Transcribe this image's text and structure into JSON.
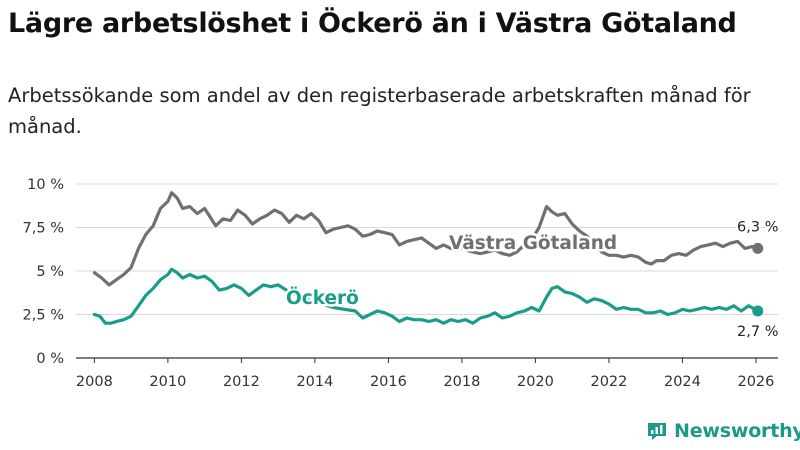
{
  "title": "Lägre arbetslöshet i Öckerö än i Västra Götaland",
  "subtitle": "Arbetssökande som andel av den registerbaserade arbetskraften månad för månad.",
  "brand": "Newsworthy",
  "colors": {
    "vg": "#707070",
    "ockero": "#1a9c8c",
    "grid": "#d9d9d9",
    "axis": "#333333"
  },
  "chart_data": {
    "type": "line",
    "title": "Lägre arbetslöshet i Öckerö än i Västra Götaland",
    "xlabel": "",
    "ylabel": "",
    "xlim": [
      2007.5,
      2026.6
    ],
    "ylim": [
      0,
      10
    ],
    "x_ticks": [
      2008,
      2010,
      2012,
      2014,
      2016,
      2018,
      2020,
      2022,
      2024,
      2026
    ],
    "x_tick_labels": [
      "2008",
      "2010",
      "2012",
      "2014",
      "2016",
      "2018",
      "2020",
      "2022",
      "2024",
      "2026"
    ],
    "y_ticks": [
      0,
      2.5,
      5,
      7.5,
      10
    ],
    "y_tick_labels": [
      "0 %",
      "2,5 %",
      "5 %",
      "7,5 %",
      "10 %"
    ],
    "grid": "horizontal",
    "series": [
      {
        "name": "Västra Götaland",
        "end_label": "6,3 %",
        "points": [
          [
            2008.0,
            4.9
          ],
          [
            2008.2,
            4.6
          ],
          [
            2008.4,
            4.2
          ],
          [
            2008.6,
            4.5
          ],
          [
            2008.8,
            4.8
          ],
          [
            2009.0,
            5.2
          ],
          [
            2009.2,
            6.3
          ],
          [
            2009.4,
            7.1
          ],
          [
            2009.6,
            7.6
          ],
          [
            2009.8,
            8.6
          ],
          [
            2010.0,
            9.0
          ],
          [
            2010.1,
            9.5
          ],
          [
            2010.25,
            9.2
          ],
          [
            2010.4,
            8.6
          ],
          [
            2010.6,
            8.7
          ],
          [
            2010.8,
            8.3
          ],
          [
            2011.0,
            8.6
          ],
          [
            2011.15,
            8.1
          ],
          [
            2011.3,
            7.6
          ],
          [
            2011.5,
            8.0
          ],
          [
            2011.7,
            7.9
          ],
          [
            2011.9,
            8.5
          ],
          [
            2012.1,
            8.2
          ],
          [
            2012.3,
            7.7
          ],
          [
            2012.5,
            8.0
          ],
          [
            2012.7,
            8.2
          ],
          [
            2012.9,
            8.5
          ],
          [
            2013.1,
            8.3
          ],
          [
            2013.3,
            7.8
          ],
          [
            2013.5,
            8.2
          ],
          [
            2013.7,
            8.0
          ],
          [
            2013.9,
            8.3
          ],
          [
            2014.1,
            7.9
          ],
          [
            2014.3,
            7.2
          ],
          [
            2014.5,
            7.4
          ],
          [
            2014.7,
            7.5
          ],
          [
            2014.9,
            7.6
          ],
          [
            2015.1,
            7.4
          ],
          [
            2015.3,
            7.0
          ],
          [
            2015.5,
            7.1
          ],
          [
            2015.7,
            7.3
          ],
          [
            2015.9,
            7.2
          ],
          [
            2016.1,
            7.1
          ],
          [
            2016.3,
            6.5
          ],
          [
            2016.5,
            6.7
          ],
          [
            2016.7,
            6.8
          ],
          [
            2016.9,
            6.9
          ],
          [
            2017.1,
            6.6
          ],
          [
            2017.3,
            6.3
          ],
          [
            2017.5,
            6.5
          ],
          [
            2017.7,
            6.3
          ],
          [
            2017.9,
            6.4
          ],
          [
            2018.1,
            6.2
          ],
          [
            2018.3,
            6.1
          ],
          [
            2018.5,
            6.0
          ],
          [
            2018.7,
            6.1
          ],
          [
            2018.9,
            6.2
          ],
          [
            2019.1,
            6.0
          ],
          [
            2019.3,
            5.9
          ],
          [
            2019.5,
            6.1
          ],
          [
            2019.7,
            6.5
          ],
          [
            2019.9,
            6.8
          ],
          [
            2020.1,
            7.5
          ],
          [
            2020.3,
            8.7
          ],
          [
            2020.45,
            8.4
          ],
          [
            2020.6,
            8.2
          ],
          [
            2020.8,
            8.3
          ],
          [
            2021.0,
            7.7
          ],
          [
            2021.2,
            7.3
          ],
          [
            2021.4,
            7.0
          ],
          [
            2021.6,
            6.5
          ],
          [
            2021.8,
            6.1
          ],
          [
            2022.0,
            5.9
          ],
          [
            2022.2,
            5.9
          ],
          [
            2022.4,
            5.8
          ],
          [
            2022.6,
            5.9
          ],
          [
            2022.8,
            5.8
          ],
          [
            2023.0,
            5.5
          ],
          [
            2023.15,
            5.4
          ],
          [
            2023.3,
            5.6
          ],
          [
            2023.5,
            5.6
          ],
          [
            2023.7,
            5.9
          ],
          [
            2023.9,
            6.0
          ],
          [
            2024.1,
            5.9
          ],
          [
            2024.3,
            6.2
          ],
          [
            2024.5,
            6.4
          ],
          [
            2024.7,
            6.5
          ],
          [
            2024.9,
            6.6
          ],
          [
            2025.1,
            6.4
          ],
          [
            2025.3,
            6.6
          ],
          [
            2025.5,
            6.7
          ],
          [
            2025.7,
            6.3
          ],
          [
            2025.9,
            6.4
          ],
          [
            2026.05,
            6.3
          ]
        ]
      },
      {
        "name": "Öckerö",
        "end_label": "2,7 %",
        "points": [
          [
            2008.0,
            2.5
          ],
          [
            2008.15,
            2.4
          ],
          [
            2008.3,
            2.0
          ],
          [
            2008.45,
            2.0
          ],
          [
            2008.6,
            2.1
          ],
          [
            2008.8,
            2.2
          ],
          [
            2009.0,
            2.4
          ],
          [
            2009.2,
            3.0
          ],
          [
            2009.4,
            3.6
          ],
          [
            2009.6,
            4.0
          ],
          [
            2009.8,
            4.5
          ],
          [
            2010.0,
            4.8
          ],
          [
            2010.1,
            5.1
          ],
          [
            2010.25,
            4.9
          ],
          [
            2010.4,
            4.6
          ],
          [
            2010.6,
            4.8
          ],
          [
            2010.8,
            4.6
          ],
          [
            2011.0,
            4.7
          ],
          [
            2011.2,
            4.4
          ],
          [
            2011.4,
            3.9
          ],
          [
            2011.6,
            4.0
          ],
          [
            2011.8,
            4.2
          ],
          [
            2012.0,
            4.0
          ],
          [
            2012.2,
            3.6
          ],
          [
            2012.4,
            3.9
          ],
          [
            2012.6,
            4.2
          ],
          [
            2012.8,
            4.1
          ],
          [
            2013.0,
            4.2
          ],
          [
            2013.3,
            3.8
          ],
          [
            2013.6,
            3.5
          ],
          [
            2013.9,
            3.3
          ],
          [
            2014.2,
            3.1
          ],
          [
            2014.5,
            2.9
          ],
          [
            2014.8,
            2.8
          ],
          [
            2015.1,
            2.7
          ],
          [
            2015.3,
            2.3
          ],
          [
            2015.5,
            2.5
          ],
          [
            2015.7,
            2.7
          ],
          [
            2015.9,
            2.6
          ],
          [
            2016.1,
            2.4
          ],
          [
            2016.3,
            2.1
          ],
          [
            2016.5,
            2.3
          ],
          [
            2016.7,
            2.2
          ],
          [
            2016.9,
            2.2
          ],
          [
            2017.1,
            2.1
          ],
          [
            2017.3,
            2.2
          ],
          [
            2017.5,
            2.0
          ],
          [
            2017.7,
            2.2
          ],
          [
            2017.9,
            2.1
          ],
          [
            2018.1,
            2.2
          ],
          [
            2018.3,
            2.0
          ],
          [
            2018.5,
            2.3
          ],
          [
            2018.7,
            2.4
          ],
          [
            2018.9,
            2.6
          ],
          [
            2019.1,
            2.3
          ],
          [
            2019.3,
            2.4
          ],
          [
            2019.5,
            2.6
          ],
          [
            2019.7,
            2.7
          ],
          [
            2019.9,
            2.9
          ],
          [
            2020.1,
            2.7
          ],
          [
            2020.3,
            3.5
          ],
          [
            2020.45,
            4.0
          ],
          [
            2020.6,
            4.1
          ],
          [
            2020.8,
            3.8
          ],
          [
            2021.0,
            3.7
          ],
          [
            2021.2,
            3.5
          ],
          [
            2021.4,
            3.2
          ],
          [
            2021.6,
            3.4
          ],
          [
            2021.8,
            3.3
          ],
          [
            2022.0,
            3.1
          ],
          [
            2022.2,
            2.8
          ],
          [
            2022.4,
            2.9
          ],
          [
            2022.6,
            2.8
          ],
          [
            2022.8,
            2.8
          ],
          [
            2023.0,
            2.6
          ],
          [
            2023.2,
            2.6
          ],
          [
            2023.4,
            2.7
          ],
          [
            2023.6,
            2.5
          ],
          [
            2023.8,
            2.6
          ],
          [
            2024.0,
            2.8
          ],
          [
            2024.2,
            2.7
          ],
          [
            2024.4,
            2.8
          ],
          [
            2024.6,
            2.9
          ],
          [
            2024.8,
            2.8
          ],
          [
            2025.0,
            2.9
          ],
          [
            2025.2,
            2.8
          ],
          [
            2025.4,
            3.0
          ],
          [
            2025.6,
            2.7
          ],
          [
            2025.8,
            3.0
          ],
          [
            2026.05,
            2.7
          ]
        ]
      }
    ]
  }
}
